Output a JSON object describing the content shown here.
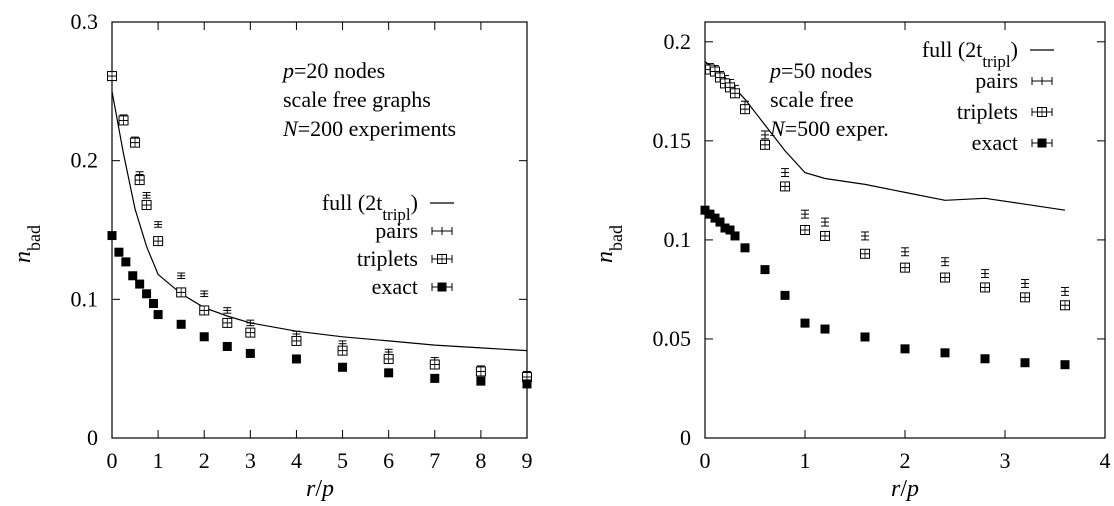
{
  "chart_data": [
    {
      "type": "scatter",
      "xlabel": "r/p",
      "ylabel": "n_bad",
      "xlim": [
        0,
        9
      ],
      "ylim": [
        0,
        0.3
      ],
      "xticks": [
        "0",
        "1",
        "2",
        "3",
        "4",
        "5",
        "6",
        "7",
        "8",
        "9"
      ],
      "yticks": [
        "0",
        "0.1",
        "0.2",
        "0.3"
      ],
      "annotations": [
        "p=20 nodes",
        "scale free graphs",
        "N=200 experiments"
      ],
      "legend_position": "right",
      "series": [
        {
          "name": "full (2t_tripl)",
          "style": "line",
          "x": [
            0,
            0.25,
            0.5,
            0.75,
            1,
            1.5,
            2,
            2.5,
            3,
            4,
            5,
            6,
            7,
            8,
            9
          ],
          "y": [
            0.25,
            0.205,
            0.165,
            0.138,
            0.118,
            0.104,
            0.094,
            0.088,
            0.083,
            0.077,
            0.073,
            0.07,
            0.067,
            0.065,
            0.063
          ]
        },
        {
          "name": "pairs",
          "style": "errorbar",
          "x": [
            0,
            0.25,
            0.5,
            0.6,
            0.75,
            1,
            1.5,
            2,
            2.5,
            3,
            4,
            5,
            6,
            7,
            8,
            9
          ],
          "y": [
            0.262,
            0.231,
            0.215,
            0.19,
            0.175,
            0.154,
            0.117,
            0.104,
            0.092,
            0.083,
            0.075,
            0.068,
            0.062,
            0.056,
            0.05,
            0.046
          ],
          "err": [
            0.002,
            0.002,
            0.002,
            0.002,
            0.002,
            0.002,
            0.002,
            0.002,
            0.002,
            0.002,
            0.002,
            0.002,
            0.002,
            0.002,
            0.002,
            0.002
          ]
        },
        {
          "name": "triplets",
          "style": "open-square",
          "x": [
            0,
            0.25,
            0.5,
            0.6,
            0.75,
            1,
            1.5,
            2,
            2.5,
            3,
            4,
            5,
            6,
            7,
            8,
            9
          ],
          "y": [
            0.261,
            0.229,
            0.213,
            0.186,
            0.168,
            0.142,
            0.105,
            0.092,
            0.083,
            0.076,
            0.07,
            0.063,
            0.057,
            0.053,
            0.048,
            0.044
          ],
          "err": [
            0.002,
            0.002,
            0.002,
            0.002,
            0.002,
            0.002,
            0.002,
            0.002,
            0.002,
            0.002,
            0.002,
            0.002,
            0.002,
            0.002,
            0.002,
            0.002
          ]
        },
        {
          "name": "exact",
          "style": "filled-square",
          "x": [
            0,
            0.15,
            0.3,
            0.45,
            0.6,
            0.75,
            0.9,
            1.0,
            1.5,
            2,
            2.5,
            3,
            4,
            5,
            6,
            7,
            8,
            9
          ],
          "y": [
            0.146,
            0.134,
            0.127,
            0.117,
            0.111,
            0.104,
            0.097,
            0.089,
            0.082,
            0.073,
            0.066,
            0.061,
            0.057,
            0.051,
            0.047,
            0.043,
            0.041,
            0.039
          ],
          "err": [
            0.001,
            0.001,
            0.001,
            0.001,
            0.001,
            0.001,
            0.001,
            0.001,
            0.001,
            0.001,
            0.001,
            0.001,
            0.001,
            0.001,
            0.001,
            0.001,
            0.001,
            0.001
          ]
        }
      ]
    },
    {
      "type": "scatter",
      "xlabel": "r/p",
      "ylabel": "n_bad",
      "xlim": [
        0,
        4
      ],
      "ylim": [
        0,
        0.21
      ],
      "xticks": [
        "0",
        "1",
        "2",
        "3",
        "4"
      ],
      "yticks": [
        "0",
        "0.05",
        "0.1",
        "0.15",
        "0.2"
      ],
      "annotations": [
        "p=50 nodes",
        "scale free",
        "N=500 exper."
      ],
      "legend_position": "top-right",
      "series": [
        {
          "name": "full (2t_tripl)",
          "style": "line",
          "x": [
            0,
            0.2,
            0.4,
            0.6,
            0.8,
            1.0,
            1.2,
            1.6,
            2.0,
            2.4,
            2.8,
            3.2,
            3.6
          ],
          "y": [
            0.19,
            0.182,
            0.171,
            0.158,
            0.145,
            0.134,
            0.131,
            0.128,
            0.124,
            0.12,
            0.121,
            0.118,
            0.115
          ]
        },
        {
          "name": "pairs",
          "style": "errorbar",
          "x": [
            0.05,
            0.1,
            0.15,
            0.2,
            0.25,
            0.3,
            0.4,
            0.6,
            0.8,
            1.0,
            1.2,
            1.6,
            2.0,
            2.4,
            2.8,
            3.2,
            3.6
          ],
          "y": [
            0.187,
            0.186,
            0.183,
            0.181,
            0.179,
            0.176,
            0.168,
            0.153,
            0.134,
            0.113,
            0.109,
            0.102,
            0.094,
            0.089,
            0.083,
            0.078,
            0.074
          ],
          "err": [
            0.002,
            0.002,
            0.002,
            0.002,
            0.002,
            0.002,
            0.002,
            0.002,
            0.002,
            0.002,
            0.002,
            0.002,
            0.002,
            0.002,
            0.002,
            0.002,
            0.002
          ]
        },
        {
          "name": "triplets",
          "style": "open-square",
          "x": [
            0.05,
            0.1,
            0.15,
            0.2,
            0.25,
            0.3,
            0.4,
            0.6,
            0.8,
            1.0,
            1.2,
            1.6,
            2.0,
            2.4,
            2.8,
            3.2,
            3.6
          ],
          "y": [
            0.186,
            0.185,
            0.182,
            0.179,
            0.177,
            0.174,
            0.166,
            0.148,
            0.127,
            0.105,
            0.102,
            0.093,
            0.086,
            0.081,
            0.076,
            0.071,
            0.067
          ],
          "err": [
            0.002,
            0.002,
            0.002,
            0.002,
            0.002,
            0.002,
            0.002,
            0.002,
            0.002,
            0.002,
            0.002,
            0.002,
            0.002,
            0.002,
            0.002,
            0.002,
            0.002
          ]
        },
        {
          "name": "exact",
          "style": "filled-square",
          "x": [
            0,
            0.05,
            0.1,
            0.15,
            0.2,
            0.25,
            0.3,
            0.4,
            0.6,
            0.8,
            1.0,
            1.2,
            1.6,
            2.0,
            2.4,
            2.8,
            3.2,
            3.6
          ],
          "y": [
            0.115,
            0.113,
            0.111,
            0.109,
            0.106,
            0.105,
            0.102,
            0.096,
            0.085,
            0.072,
            0.058,
            0.055,
            0.051,
            0.045,
            0.043,
            0.04,
            0.038,
            0.037
          ],
          "err": [
            0.001,
            0.001,
            0.001,
            0.001,
            0.001,
            0.001,
            0.001,
            0.001,
            0.001,
            0.001,
            0.001,
            0.001,
            0.001,
            0.001,
            0.001,
            0.001,
            0.001,
            0.001
          ]
        }
      ]
    }
  ]
}
